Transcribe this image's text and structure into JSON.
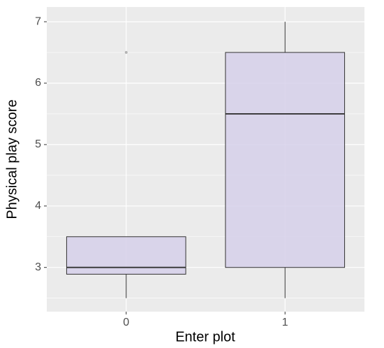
{
  "chart_data": {
    "type": "boxplot",
    "x_label": "Enter plot",
    "y_label": "Physical play score",
    "categories": [
      "0",
      "1"
    ],
    "boxes": [
      {
        "min": 2.5,
        "q1": 2.89,
        "median": 3,
        "q3": 3.5,
        "max": 3.5,
        "outliers": [
          6.5
        ]
      },
      {
        "min": 2.5,
        "q1": 3,
        "median": 5.5,
        "q3": 6.5,
        "max": 7,
        "outliers": []
      }
    ],
    "fill": "#d6d0ea",
    "stroke": "#333333",
    "outlier_color": "#b3b3b3",
    "ylim": [
      2.28,
      7.24
    ],
    "yticks": [
      3,
      4,
      5,
      6,
      7
    ],
    "grid": true,
    "minor_grid": true
  }
}
